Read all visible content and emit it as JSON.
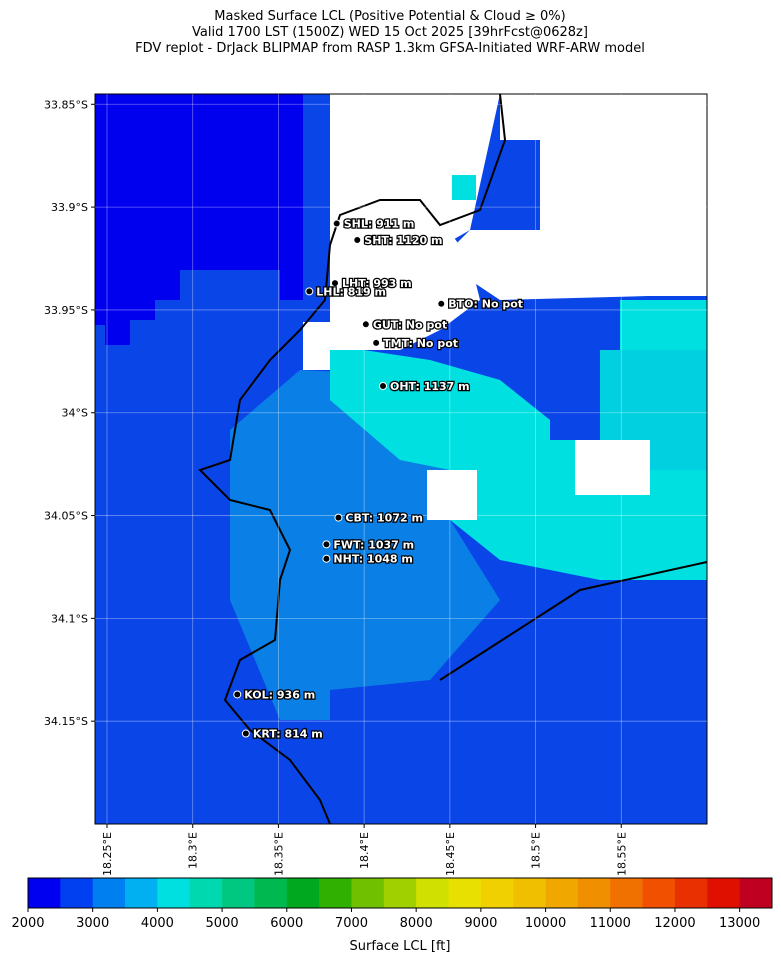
{
  "title": [
    "Masked Surface LCL (Positive Potential & Cloud ≥ 0%)",
    "Valid 1700 LST (1500Z) WED 15 Oct 2025 [39hrFcst@0628z]",
    "FDV replot - DrJack BLIPMAP from RASP 1.3km GFSA-Initiated WRF-ARW model"
  ],
  "map": {
    "xlim": [
      18.243,
      18.6
    ],
    "ylim": [
      -34.2,
      -33.845
    ],
    "grid": true,
    "xticks": [
      {
        "value": 18.25,
        "label": "18.25°E"
      },
      {
        "value": 18.3,
        "label": "18.3°E"
      },
      {
        "value": 18.35,
        "label": "18.35°E"
      },
      {
        "value": 18.4,
        "label": "18.4°E"
      },
      {
        "value": 18.45,
        "label": "18.45°E"
      },
      {
        "value": 18.5,
        "label": "18.5°E"
      },
      {
        "value": 18.55,
        "label": "18.55°E"
      }
    ],
    "yticks": [
      {
        "value": -33.85,
        "label": "33.85°S"
      },
      {
        "value": -33.9,
        "label": "33.9°S"
      },
      {
        "value": -33.95,
        "label": "33.95°S"
      },
      {
        "value": -34,
        "label": "34°S"
      },
      {
        "value": -34.05,
        "label": "34.05°S"
      },
      {
        "value": -34.1,
        "label": "34.1°S"
      },
      {
        "value": -34.15,
        "label": "34.15°S"
      }
    ],
    "stations": [
      {
        "lon": 18.384,
        "lat": -33.908,
        "label": "SHL: 911 m"
      },
      {
        "lon": 18.396,
        "lat": -33.916,
        "label": "SHT: 1120 m"
      },
      {
        "lon": 18.383,
        "lat": -33.937,
        "label": "LHT: 993 m"
      },
      {
        "lon": 18.368,
        "lat": -33.941,
        "label": "LHL: 819 m"
      },
      {
        "lon": 18.445,
        "lat": -33.947,
        "label": "BTO: No pot"
      },
      {
        "lon": 18.401,
        "lat": -33.957,
        "label": "GUT: No pot"
      },
      {
        "lon": 18.407,
        "lat": -33.966,
        "label": "TMT: No pot"
      },
      {
        "lon": 18.411,
        "lat": -33.987,
        "label": "OHT: 1137 m"
      },
      {
        "lon": 18.385,
        "lat": -34.051,
        "label": "CBT: 1072 m"
      },
      {
        "lon": 18.378,
        "lat": -34.064,
        "label": "FWT: 1037 m"
      },
      {
        "lon": 18.378,
        "lat": -34.071,
        "label": "NHT: 1048 m"
      },
      {
        "lon": 18.326,
        "lat": -34.137,
        "label": "KOL: 936 m"
      },
      {
        "lon": 18.331,
        "lat": -34.156,
        "label": "KRT: 814 m"
      }
    ]
  },
  "colorbar": {
    "levels": [
      2000,
      2500,
      3000,
      3500,
      4000,
      4500,
      5000,
      5500,
      6000,
      6500,
      7000,
      7500,
      8000,
      8500,
      9000,
      9500,
      10000,
      10500,
      11000,
      11500,
      12000,
      12500,
      13000,
      13500
    ],
    "colors": [
      "#0000f0",
      "#0040f0",
      "#0080f0",
      "#00b0f0",
      "#00e0e0",
      "#00d8b0",
      "#00c880",
      "#00b850",
      "#00a820",
      "#30b000",
      "#70c000",
      "#a0d000",
      "#d0e000",
      "#e8e000",
      "#f0d000",
      "#f0c000",
      "#f0a800",
      "#f09000",
      "#f07000",
      "#f05000",
      "#e83000",
      "#e01000",
      "#c00020"
    ],
    "ticks": [
      2000,
      3000,
      4000,
      5000,
      6000,
      7000,
      8000,
      9000,
      10000,
      11000,
      12000,
      13000
    ],
    "label": "Surface LCL [ft]"
  }
}
